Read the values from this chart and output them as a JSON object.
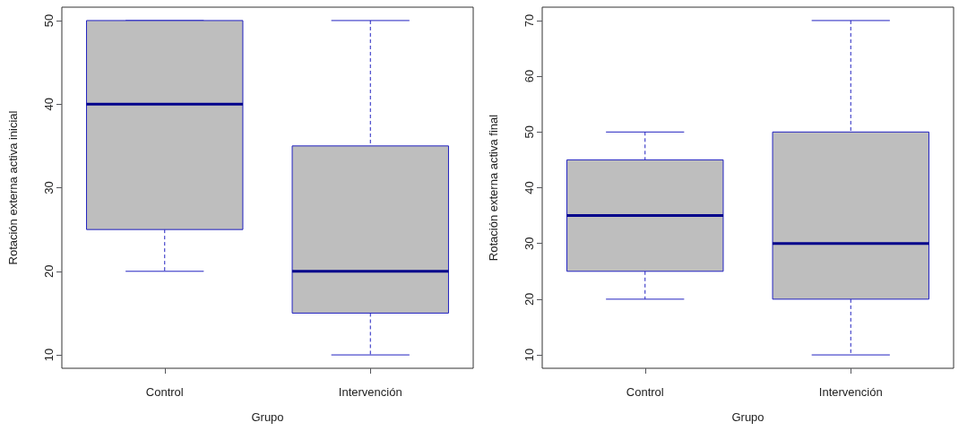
{
  "chart_data": [
    {
      "type": "box",
      "categories": [
        "Control",
        "Intervención"
      ],
      "xlabel": "Grupo",
      "ylabel": "Rotación externa activa inicial",
      "ylim": [
        8.4,
        51.6
      ],
      "yticks": [
        10,
        20,
        30,
        40,
        50
      ],
      "color": "#bebebe",
      "boxes": [
        {
          "low": 20,
          "q1": 25,
          "median": 40,
          "q3": 50,
          "high": 50
        },
        {
          "low": 10,
          "q1": 15,
          "median": 20,
          "q3": 35,
          "high": 50
        }
      ]
    },
    {
      "type": "box",
      "categories": [
        "Control",
        "Intervención"
      ],
      "xlabel": "Grupo",
      "ylabel": "Rotación externa activa final",
      "ylim": [
        7.6,
        72.4
      ],
      "yticks": [
        10,
        20,
        30,
        40,
        50,
        60,
        70
      ],
      "color": "#bebebe",
      "boxes": [
        {
          "low": 20,
          "q1": 25,
          "median": 35,
          "q3": 45,
          "high": 50
        },
        {
          "low": 10,
          "q1": 20,
          "median": 30,
          "q3": 50,
          "high": 70
        }
      ]
    }
  ]
}
